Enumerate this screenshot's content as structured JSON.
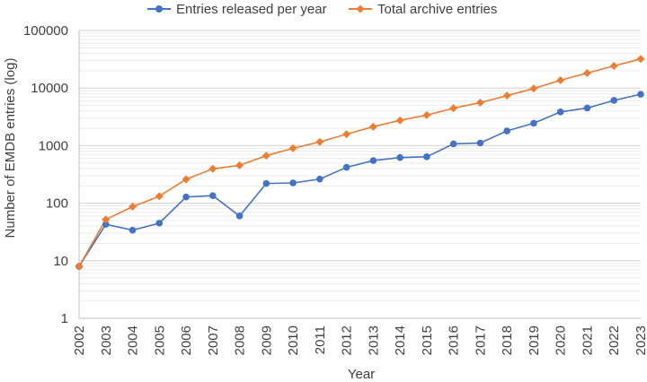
{
  "chart_data": {
    "type": "line",
    "title": "",
    "xlabel": "Year",
    "ylabel": "Number of EMDB entries (log)",
    "yscale": "log",
    "ylim": [
      1,
      100000
    ],
    "ytick_labels": [
      "1",
      "10",
      "100",
      "1000",
      "10000",
      "100000"
    ],
    "grid": "horizontal major and minor",
    "legend_position": "top-center",
    "categories": [
      "2002",
      "2003",
      "2004",
      "2005",
      "2006",
      "2007",
      "2008",
      "2009",
      "2010",
      "2011",
      "2012",
      "2013",
      "2014",
      "2015",
      "2016",
      "2017",
      "2018",
      "2019",
      "2020",
      "2021",
      "2022",
      "2023"
    ],
    "series": [
      {
        "name": "Entries released per year",
        "color": "#4472C4",
        "marker": "circle",
        "values": [
          8,
          43,
          34,
          45,
          128,
          135,
          60,
          220,
          225,
          262,
          420,
          550,
          620,
          640,
          1075,
          1110,
          1800,
          2450,
          3850,
          4500,
          6100,
          7800
        ]
      },
      {
        "name": "Total archive entries",
        "color": "#ED7D31",
        "marker": "diamond",
        "values": [
          8,
          52,
          87,
          132,
          260,
          395,
          455,
          670,
          900,
          1160,
          1580,
          2130,
          2750,
          3390,
          4470,
          5580,
          7380,
          9830,
          13680,
          18180,
          24280,
          32080
        ]
      }
    ]
  }
}
